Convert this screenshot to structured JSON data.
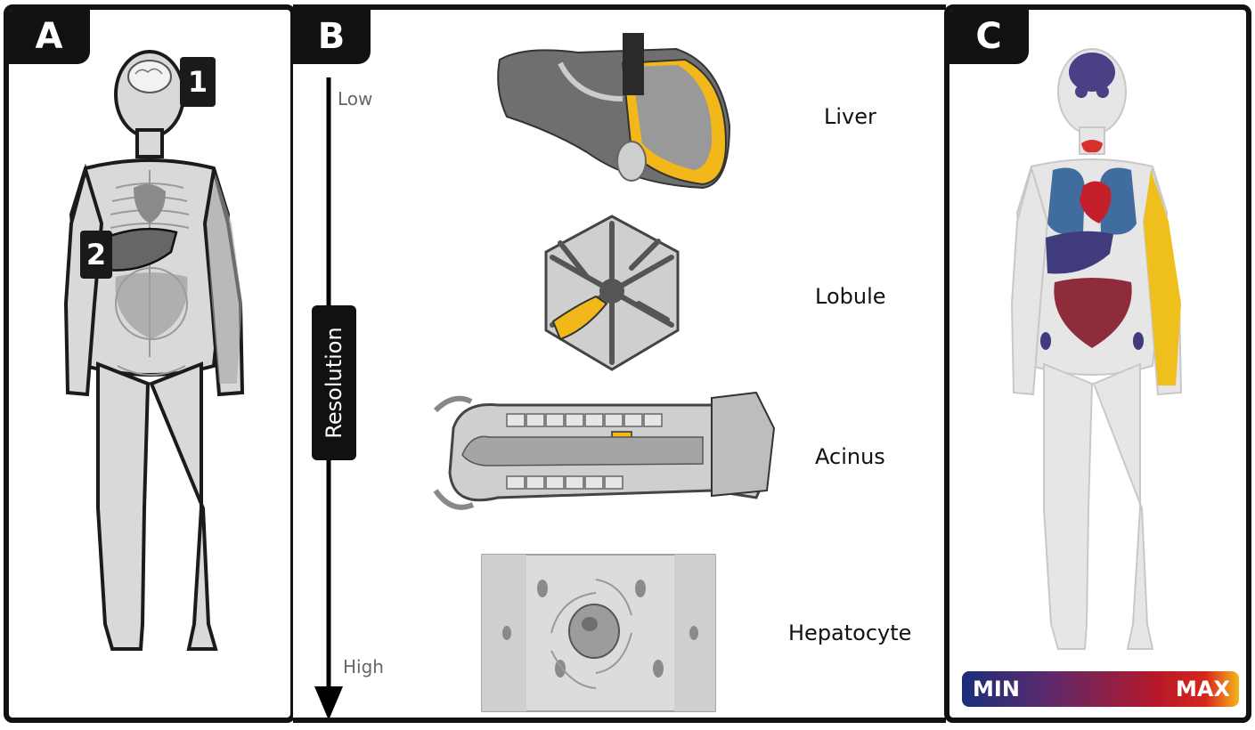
{
  "panels": {
    "a": {
      "tab": "A",
      "markers": [
        "1",
        "2"
      ]
    },
    "b": {
      "tab": "B",
      "axis": {
        "low": "Low",
        "high": "High",
        "title": "Resolution"
      },
      "levels": [
        "Liver",
        "Lobule",
        "Acinus",
        "Hepatocyte"
      ]
    },
    "c": {
      "tab": "C",
      "legend": {
        "min": "MIN",
        "max": "MAX"
      }
    }
  },
  "colors": {
    "highlight": "#f2b81a",
    "brain": "#4b3f86",
    "lung": "#2f5e96",
    "heart": "#c41f2a",
    "intestine": "#8a2232",
    "muscle": "#efbf1e",
    "thyroid": "#d6312b",
    "liver_c": "#3f3b7d",
    "gray_dark": "#5f5f5f",
    "gray_mid": "#a0a0a0",
    "gray_light": "#d9d9d9"
  },
  "icons": {
    "a": [
      "human-body-icon",
      "brain-icon",
      "liver-icon"
    ],
    "b": [
      "liver-organ-icon",
      "lobule-icon",
      "acinus-icon",
      "hepatocyte-icon",
      "arrow-down-icon"
    ],
    "c": [
      "human-body-heatmap-icon"
    ]
  }
}
